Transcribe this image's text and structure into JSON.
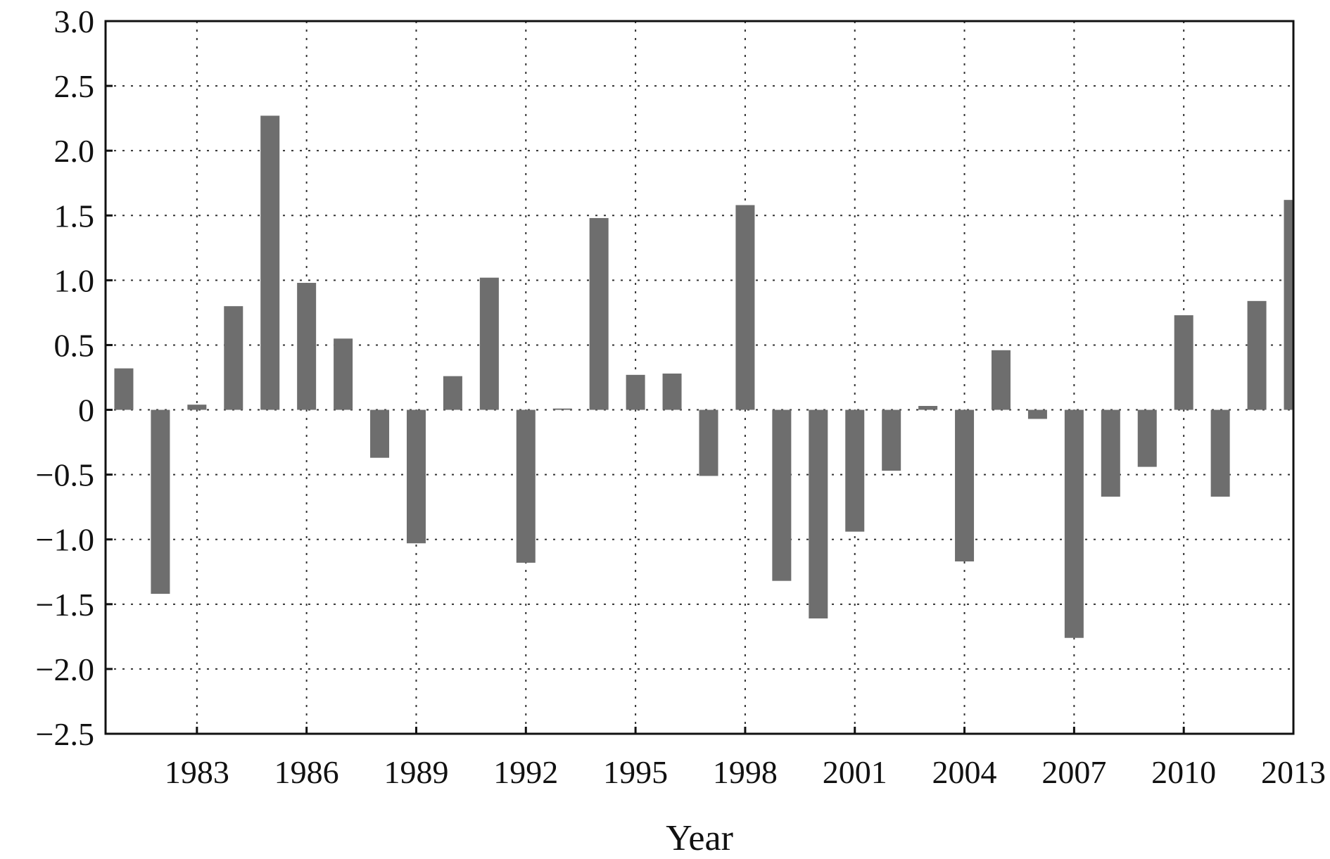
{
  "chart_data": {
    "type": "bar",
    "title": "",
    "xlabel": "Year",
    "ylabel": "",
    "xlim": [
      1980.5,
      2013
    ],
    "ylim": [
      -2.5,
      3.0
    ],
    "grid": true,
    "bar_color": "#6e6e6e",
    "yticks": [
      3.0,
      2.5,
      2.0,
      1.5,
      1.0,
      0.5,
      0,
      -0.5,
      -1.0,
      -1.5,
      -2.0,
      -2.5
    ],
    "ytick_labels": [
      "3.0",
      "2.5",
      "2.0",
      "1.5",
      "1.0",
      "0.5",
      "0",
      "−0.5",
      "−1.0",
      "−1.5",
      "−2.0",
      "−2.5"
    ],
    "xticks": [
      1983,
      1986,
      1989,
      1992,
      1995,
      1998,
      2001,
      2004,
      2007,
      2010,
      2013
    ],
    "xtick_labels": [
      "1983",
      "1986",
      "1989",
      "1992",
      "1995",
      "1998",
      "2001",
      "2004",
      "2007",
      "2010",
      "2013"
    ],
    "x": [
      1981,
      1982,
      1983,
      1984,
      1985,
      1986,
      1987,
      1988,
      1989,
      1990,
      1991,
      1992,
      1993,
      1994,
      1995,
      1996,
      1997,
      1998,
      1999,
      2000,
      2001,
      2002,
      2003,
      2004,
      2005,
      2006,
      2007,
      2008,
      2009,
      2010,
      2011,
      2012,
      2013
    ],
    "values": [
      0.32,
      -1.42,
      0.04,
      0.8,
      2.27,
      0.98,
      0.55,
      -0.37,
      -1.03,
      0.26,
      1.02,
      -1.18,
      0.01,
      1.48,
      0.27,
      0.28,
      -0.51,
      1.58,
      -1.32,
      -1.61,
      -0.94,
      -0.47,
      0.03,
      -1.17,
      0.46,
      -0.07,
      -1.76,
      -0.67,
      -0.44,
      0.73,
      -0.67,
      0.84,
      1.62
    ]
  }
}
